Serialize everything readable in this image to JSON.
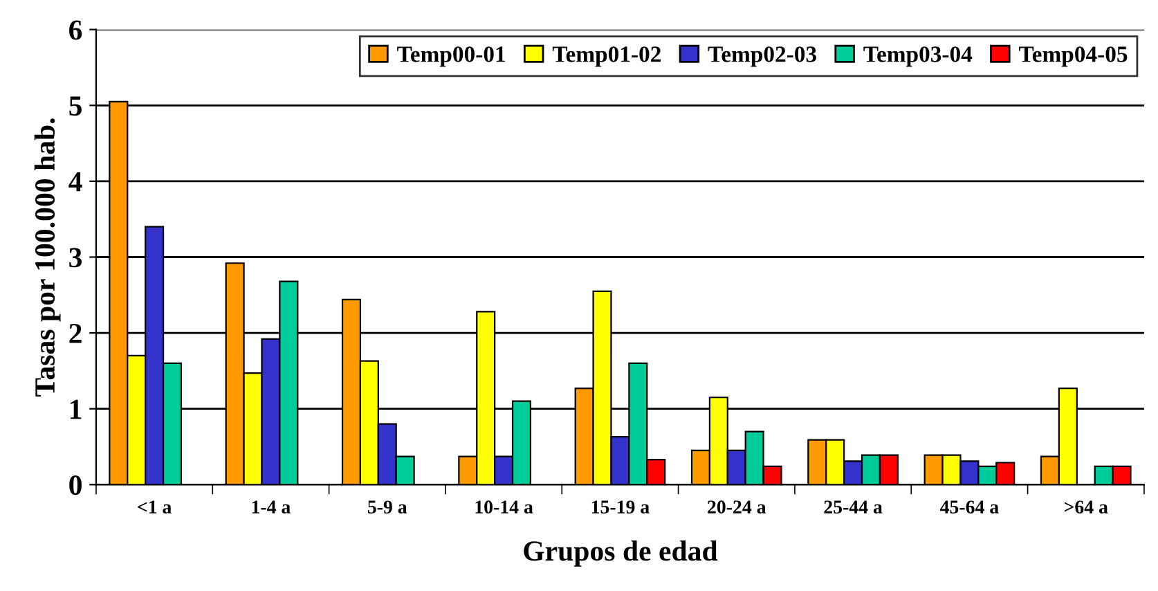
{
  "chart_data": {
    "type": "bar",
    "xlabel": "Grupos de edad",
    "ylabel": "Tasas por 100.000 hab.",
    "categories": [
      "<1 a",
      "1-4 a",
      "5-9 a",
      "10-14 a",
      "15-19 a",
      "20-24 a",
      "25-44 a",
      "45-64 a",
      ">64 a"
    ],
    "series": [
      {
        "name": "Temp00-01",
        "color": "#ff9900",
        "values": [
          5.05,
          2.92,
          2.44,
          0.37,
          1.27,
          0.45,
          0.59,
          0.39,
          0.37
        ]
      },
      {
        "name": "Temp01-02",
        "color": "#ffff00",
        "values": [
          1.7,
          1.47,
          1.63,
          2.28,
          2.55,
          1.15,
          0.59,
          0.39,
          1.27
        ]
      },
      {
        "name": "Temp02-03",
        "color": "#3333cc",
        "values": [
          3.4,
          1.92,
          0.8,
          0.37,
          0.63,
          0.45,
          0.31,
          0.31,
          null
        ]
      },
      {
        "name": "Temp03-04",
        "color": "#00cc99",
        "values": [
          1.6,
          2.68,
          0.37,
          1.1,
          1.6,
          0.7,
          0.39,
          0.24,
          0.24
        ]
      },
      {
        "name": "Temp04-05",
        "color": "#ff0000",
        "values": [
          null,
          null,
          null,
          null,
          0.33,
          0.24,
          0.39,
          0.29,
          0.24
        ]
      }
    ],
    "ylim": [
      0,
      6
    ],
    "yticks": [
      0,
      1,
      2,
      3,
      4,
      5,
      6
    ],
    "grid": "y",
    "legend": "top right"
  }
}
